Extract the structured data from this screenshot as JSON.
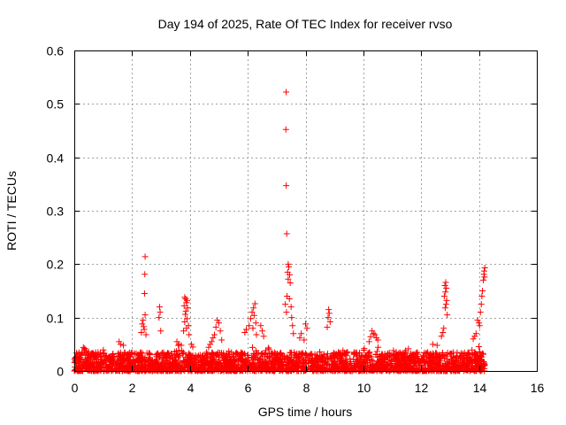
{
  "chart_data": {
    "type": "scatter",
    "title": "Day 194 of 2025, Rate Of TEC Index for receiver rvso",
    "xlabel": "GPS time / hours",
    "ylabel": "ROTI / TECUs",
    "xlim": [
      0,
      16
    ],
    "ylim": [
      0,
      0.6
    ],
    "xticks": [
      0,
      2,
      4,
      6,
      8,
      10,
      12,
      14,
      16
    ],
    "yticks": [
      0,
      0.1,
      0.2,
      0.3,
      0.4,
      0.5,
      0.6
    ],
    "xtick_labels": [
      "0",
      "2",
      "4",
      "6",
      "8",
      "10",
      "12",
      "14",
      "16"
    ],
    "ytick_labels": [
      "0",
      "0.1",
      "0.2",
      "0.3",
      "0.4",
      "0.5",
      "0.6"
    ],
    "grid": true,
    "marker": "plus",
    "color": "#ff0000",
    "series": [
      {
        "name": "ROTI",
        "points": [
          [
            7.33,
            0.522
          ],
          [
            7.32,
            0.452
          ],
          [
            7.33,
            0.347
          ],
          [
            7.35,
            0.257
          ],
          [
            7.4,
            0.2
          ],
          [
            7.42,
            0.195
          ],
          [
            7.38,
            0.185
          ],
          [
            7.45,
            0.18
          ],
          [
            7.4,
            0.172
          ],
          [
            7.47,
            0.165
          ],
          [
            7.36,
            0.14
          ],
          [
            7.44,
            0.135
          ],
          [
            7.5,
            0.12
          ],
          [
            7.52,
            0.1
          ],
          [
            7.55,
            0.085
          ],
          [
            7.58,
            0.07
          ],
          [
            7.3,
            0.125
          ],
          [
            7.34,
            0.11
          ],
          [
            2.45,
            0.214
          ],
          [
            2.44,
            0.181
          ],
          [
            2.43,
            0.145
          ],
          [
            2.45,
            0.105
          ],
          [
            2.38,
            0.095
          ],
          [
            2.35,
            0.088
          ],
          [
            2.4,
            0.083
          ],
          [
            2.42,
            0.078
          ],
          [
            2.32,
            0.072
          ],
          [
            2.48,
            0.068
          ],
          [
            2.95,
            0.12
          ],
          [
            2.97,
            0.11
          ],
          [
            2.93,
            0.1
          ],
          [
            2.99,
            0.075
          ],
          [
            3.82,
            0.138
          ],
          [
            3.85,
            0.135
          ],
          [
            3.9,
            0.132
          ],
          [
            3.88,
            0.128
          ],
          [
            3.8,
            0.122
          ],
          [
            3.92,
            0.118
          ],
          [
            3.86,
            0.112
          ],
          [
            3.84,
            0.106
          ],
          [
            3.9,
            0.098
          ],
          [
            3.82,
            0.092
          ],
          [
            3.95,
            0.085
          ],
          [
            3.88,
            0.08
          ],
          [
            3.78,
            0.075
          ],
          [
            3.97,
            0.068
          ],
          [
            3.55,
            0.055
          ],
          [
            3.62,
            0.05
          ],
          [
            3.7,
            0.048
          ],
          [
            4.05,
            0.05
          ],
          [
            4.1,
            0.045
          ],
          [
            4.95,
            0.095
          ],
          [
            5.0,
            0.09
          ],
          [
            4.9,
            0.082
          ],
          [
            5.05,
            0.075
          ],
          [
            4.85,
            0.068
          ],
          [
            4.8,
            0.062
          ],
          [
            5.1,
            0.058
          ],
          [
            4.75,
            0.055
          ],
          [
            4.7,
            0.05
          ],
          [
            6.25,
            0.126
          ],
          [
            6.2,
            0.118
          ],
          [
            6.15,
            0.11
          ],
          [
            6.22,
            0.104
          ],
          [
            6.1,
            0.098
          ],
          [
            6.28,
            0.09
          ],
          [
            6.05,
            0.085
          ],
          [
            6.18,
            0.08
          ],
          [
            5.95,
            0.078
          ],
          [
            5.9,
            0.072
          ],
          [
            6.3,
            0.068
          ],
          [
            6.45,
            0.085
          ],
          [
            6.5,
            0.075
          ],
          [
            6.55,
            0.065
          ],
          [
            8.0,
            0.088
          ],
          [
            8.05,
            0.08
          ],
          [
            7.85,
            0.07
          ],
          [
            7.8,
            0.062
          ],
          [
            7.95,
            0.058
          ],
          [
            8.8,
            0.115
          ],
          [
            8.82,
            0.108
          ],
          [
            8.78,
            0.1
          ],
          [
            8.85,
            0.092
          ],
          [
            8.75,
            0.082
          ],
          [
            10.3,
            0.075
          ],
          [
            10.35,
            0.07
          ],
          [
            10.4,
            0.068
          ],
          [
            10.25,
            0.064
          ],
          [
            10.45,
            0.062
          ],
          [
            10.5,
            0.058
          ],
          [
            10.2,
            0.055
          ],
          [
            12.85,
            0.166
          ],
          [
            12.82,
            0.16
          ],
          [
            12.87,
            0.155
          ],
          [
            12.84,
            0.148
          ],
          [
            12.8,
            0.14
          ],
          [
            12.88,
            0.132
          ],
          [
            12.86,
            0.125
          ],
          [
            12.83,
            0.118
          ],
          [
            12.9,
            0.105
          ],
          [
            12.78,
            0.08
          ],
          [
            12.75,
            0.072
          ],
          [
            12.7,
            0.065
          ],
          [
            12.4,
            0.05
          ],
          [
            12.55,
            0.048
          ],
          [
            14.2,
            0.193
          ],
          [
            14.18,
            0.187
          ],
          [
            14.17,
            0.181
          ],
          [
            14.19,
            0.176
          ],
          [
            14.15,
            0.17
          ],
          [
            14.12,
            0.15
          ],
          [
            14.1,
            0.14
          ],
          [
            14.08,
            0.125
          ],
          [
            14.05,
            0.11
          ],
          [
            13.95,
            0.095
          ],
          [
            14.0,
            0.09
          ],
          [
            14.02,
            0.085
          ],
          [
            13.9,
            0.07
          ],
          [
            13.85,
            0.065
          ],
          [
            13.8,
            0.06
          ],
          [
            1.55,
            0.055
          ],
          [
            1.6,
            0.05
          ],
          [
            1.7,
            0.048
          ],
          [
            0.35,
            0.04
          ],
          [
            0.4,
            0.038
          ],
          [
            0.5,
            0.036
          ]
        ],
        "baseline": {
          "description": "dense band of low ROTI values between 0 and about 0.05 from 0 to 14.2 h",
          "x_range": [
            0,
            14.2
          ],
          "y_range": [
            0.0,
            0.05
          ],
          "typical_max": 0.035
        }
      }
    ]
  }
}
